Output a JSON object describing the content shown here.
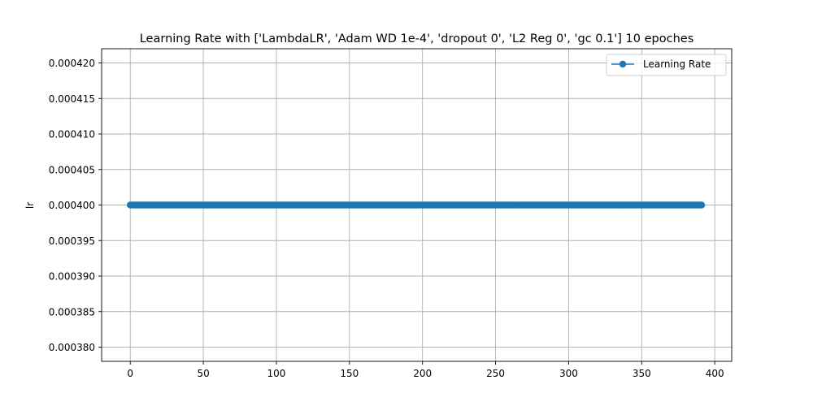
{
  "chart_data": {
    "type": "line",
    "title": "Learning Rate with ['LambdaLR', 'Adam WD 1e-4', 'dropout 0', 'L2 Reg 0', 'gc 0.1'] 10 epoches",
    "xlabel": "",
    "ylabel": "lr",
    "xlim": [
      -19.6,
      411.6
    ],
    "ylim": [
      0.000378,
      0.000422
    ],
    "x_ticks": [
      0,
      50,
      100,
      150,
      200,
      250,
      300,
      350,
      400
    ],
    "x_tick_labels": [
      "0",
      "50",
      "100",
      "150",
      "200",
      "250",
      "300",
      "350",
      "400"
    ],
    "y_ticks": [
      0.00038,
      0.000385,
      0.00039,
      0.000395,
      0.0004,
      0.000405,
      0.00041,
      0.000415,
      0.00042
    ],
    "y_tick_labels": [
      "0.000380",
      "0.000385",
      "0.000390",
      "0.000395",
      "0.000400",
      "0.000405",
      "0.000410",
      "0.000415",
      "0.000420"
    ],
    "grid": true,
    "legend_position": "top-right",
    "series": [
      {
        "name": "Learning Rate",
        "color": "#1f77b4",
        "marker": "circle",
        "x_start": 0,
        "x_end": 391,
        "x_step": 1,
        "y_constant": 0.0004
      }
    ]
  }
}
